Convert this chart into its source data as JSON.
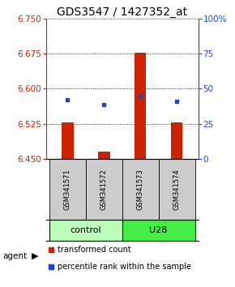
{
  "title": "GDS3547 / 1427352_at",
  "samples": [
    "GSM341571",
    "GSM341572",
    "GSM341573",
    "GSM341574"
  ],
  "bar_bottom": 6.45,
  "bar_tops": [
    6.528,
    6.466,
    6.678,
    6.528
  ],
  "blue_y": [
    6.576,
    6.566,
    6.585,
    6.573
  ],
  "ylim_left": [
    6.45,
    6.75
  ],
  "yticks_left": [
    6.45,
    6.525,
    6.6,
    6.675,
    6.75
  ],
  "ylim_right": [
    0,
    100
  ],
  "yticks_right": [
    0,
    25,
    50,
    75,
    100
  ],
  "ytick_right_labels": [
    "0",
    "25",
    "50",
    "75",
    "100%"
  ],
  "bar_color": "#cc2200",
  "blue_color": "#2244cc",
  "groups": [
    {
      "label": "control",
      "samples": [
        0,
        1
      ],
      "color": "#bbffbb"
    },
    {
      "label": "U28",
      "samples": [
        2,
        3
      ],
      "color": "#44ee44"
    }
  ],
  "sample_box_color": "#cccccc",
  "agent_label": "agent",
  "legend_items": [
    {
      "color": "#cc2200",
      "label": "transformed count"
    },
    {
      "color": "#2244cc",
      "label": "percentile rank within the sample"
    }
  ],
  "title_fontsize": 10,
  "tick_fontsize": 7.5,
  "legend_fontsize": 7
}
